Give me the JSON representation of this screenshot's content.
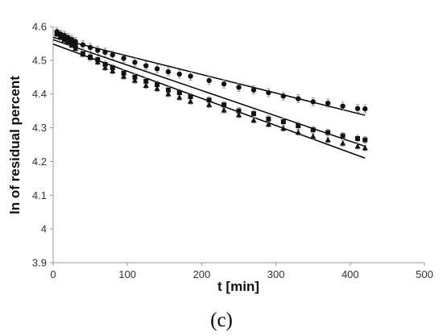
{
  "panel_label": "(c)",
  "chart_data": {
    "type": "scatter",
    "title": "",
    "xlabel": "t [min]",
    "ylabel": "ln of residual percent",
    "xlim": [
      0,
      500
    ],
    "ylim": [
      3.9,
      4.6
    ],
    "xticks": [
      0,
      100,
      200,
      300,
      400,
      500
    ],
    "yticks": [
      3.9,
      4,
      4.1,
      4.2,
      4.3,
      4.4,
      4.5,
      4.6
    ],
    "grid": false,
    "legend": "none",
    "colors": {
      "marker": "#111111",
      "line": "#000000",
      "errorbar": "#888888",
      "axis": "#999999"
    },
    "series": [
      {
        "marker": "circle",
        "x": [
          5,
          10,
          15,
          20,
          25,
          30,
          40,
          50,
          60,
          70,
          80,
          95,
          110,
          125,
          140,
          155,
          170,
          185,
          210,
          230,
          250,
          270,
          290,
          310,
          330,
          350,
          370,
          390,
          410,
          420
        ],
        "y": [
          4.585,
          4.578,
          4.574,
          4.568,
          4.562,
          4.556,
          4.546,
          4.538,
          4.53,
          4.524,
          4.516,
          4.506,
          4.494,
          4.484,
          4.475,
          4.466,
          4.459,
          4.453,
          4.44,
          4.43,
          4.42,
          4.412,
          4.404,
          4.394,
          4.386,
          4.377,
          4.373,
          4.364,
          4.357,
          4.356
        ],
        "error": 0.012,
        "fit": {
          "x": [
            0,
            420
          ],
          "y": [
            4.568,
            4.337
          ]
        }
      },
      {
        "marker": "square",
        "x": [
          5,
          10,
          15,
          20,
          25,
          30,
          40,
          50,
          60,
          70,
          80,
          95,
          110,
          125,
          140,
          155,
          170,
          185,
          210,
          230,
          250,
          270,
          290,
          310,
          330,
          350,
          370,
          390,
          410,
          420
        ],
        "y": [
          4.58,
          4.57,
          4.565,
          4.558,
          4.551,
          4.542,
          4.52,
          4.51,
          4.502,
          4.488,
          4.478,
          4.462,
          4.45,
          4.438,
          4.428,
          4.412,
          4.404,
          4.392,
          4.382,
          4.368,
          4.35,
          4.342,
          4.326,
          4.318,
          4.306,
          4.294,
          4.286,
          4.276,
          4.268,
          4.264
        ],
        "error": 0.01,
        "fit": {
          "x": [
            0,
            420
          ],
          "y": [
            4.561,
            4.245
          ]
        }
      },
      {
        "marker": "triangle",
        "x": [
          5,
          10,
          15,
          20,
          25,
          30,
          40,
          50,
          60,
          70,
          80,
          95,
          110,
          125,
          140,
          155,
          170,
          185,
          210,
          230,
          250,
          270,
          290,
          310,
          330,
          350,
          370,
          390,
          410,
          420
        ],
        "y": [
          4.578,
          4.568,
          4.56,
          4.553,
          4.545,
          4.535,
          4.518,
          4.508,
          4.495,
          4.478,
          4.468,
          4.452,
          4.44,
          4.425,
          4.416,
          4.4,
          4.39,
          4.378,
          4.368,
          4.352,
          4.338,
          4.322,
          4.31,
          4.298,
          4.286,
          4.274,
          4.264,
          4.254,
          4.245,
          4.24
        ],
        "error": 0.008,
        "fit": {
          "x": [
            0,
            420
          ],
          "y": [
            4.548,
            4.21
          ]
        }
      }
    ]
  }
}
